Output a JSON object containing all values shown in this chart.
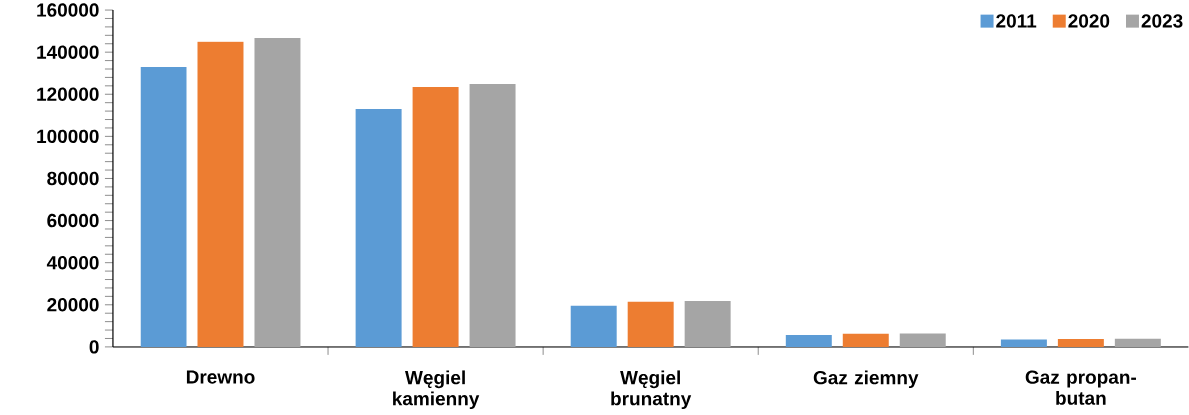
{
  "chart_data": {
    "type": "bar",
    "categories": [
      "Drewno",
      "Węgiel kamienny",
      "Węgiel brunatny",
      "Gaz ziemny",
      "Gaz propan-butan"
    ],
    "series": [
      {
        "name": "2011",
        "color": "#5b9bd5",
        "values": [
          133000,
          113000,
          19500,
          5700,
          3500
        ]
      },
      {
        "name": "2020",
        "color": "#ed7d31",
        "values": [
          145000,
          123500,
          21400,
          6200,
          3800
        ]
      },
      {
        "name": "2023",
        "color": "#a5a5a5",
        "values": [
          146700,
          124900,
          21800,
          6400,
          3900
        ]
      }
    ],
    "ylim": [
      0,
      160000
    ],
    "yticks": [
      0,
      20000,
      40000,
      60000,
      80000,
      100000,
      120000,
      140000,
      160000
    ],
    "grid": false,
    "legend": "top right"
  }
}
